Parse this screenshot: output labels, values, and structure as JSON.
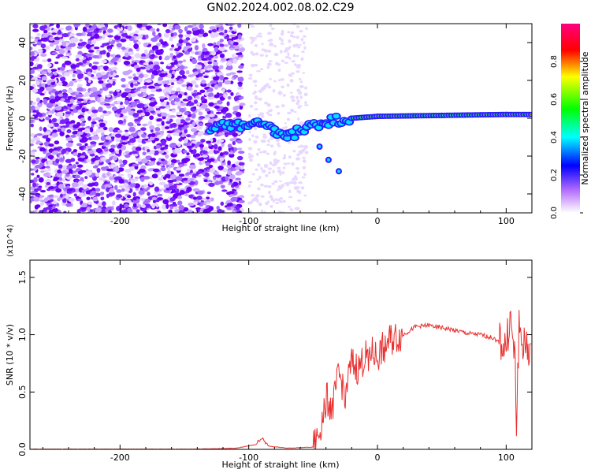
{
  "title": "GN02.2024.002.08.02.C29",
  "chart_data": [
    {
      "type": "heatmap",
      "title": "GN02.2024.002.08.02.C29",
      "xlabel": "Height of straight line (km)",
      "ylabel": "Frequency (Hz)",
      "xlim": [
        -270,
        120
      ],
      "ylim": [
        -50,
        50
      ],
      "xticks": [
        -200,
        -100,
        0,
        100
      ],
      "yticks": [
        -40,
        -20,
        0,
        20,
        40
      ],
      "colorbar": {
        "label": "Normalized spectral amplitude",
        "range": [
          0,
          1
        ],
        "ticks": [
          "0.0",
          "0.2",
          "0.4",
          "0.6",
          "0.8"
        ],
        "colors": [
          "#ffffff",
          "#7a00ff",
          "#0000ff",
          "#00ffff",
          "#00ff00",
          "#ffff00",
          "#ff0000",
          "#ff0080"
        ]
      },
      "ridge": {
        "description_points": [
          {
            "x": -130,
            "y": -5
          },
          {
            "x": -110,
            "y": -4
          },
          {
            "x": -95,
            "y": -3
          },
          {
            "x": -80,
            "y": -7
          },
          {
            "x": -70,
            "y": -10
          },
          {
            "x": -55,
            "y": -5
          },
          {
            "x": -40,
            "y": -2
          },
          {
            "x": -20,
            "y": 0
          },
          {
            "x": 0,
            "y": 1
          },
          {
            "x": 50,
            "y": 1.5
          },
          {
            "x": 100,
            "y": 2
          },
          {
            "x": 120,
            "y": 2
          }
        ],
        "branch_points": [
          {
            "x": -45,
            "y": -15
          },
          {
            "x": -38,
            "y": -22
          },
          {
            "x": -30,
            "y": -28
          }
        ]
      }
    },
    {
      "type": "line",
      "xlabel": "Height of straight line (km)",
      "ylabel": "SNR (10 * v/v)",
      "y_multiplier": "(x10^4)",
      "xlim": [
        -270,
        120
      ],
      "ylim": [
        0,
        1.65
      ],
      "xticks": [
        -200,
        -100,
        0,
        100
      ],
      "yticks": [
        0.0,
        0.5,
        1.0,
        1.5
      ],
      "color": "#e8302f",
      "series": [
        {
          "x": [
            -270,
            -200,
            -150,
            -110,
            -95,
            -90,
            -85,
            -70,
            -50,
            -45,
            -40,
            -35,
            -30,
            -25,
            -20,
            -15,
            -10,
            -5,
            0,
            5,
            10,
            20,
            30,
            40,
            50,
            60,
            70,
            80,
            90,
            95,
            100,
            103,
            105,
            107,
            108,
            110,
            112,
            115,
            120
          ],
          "y": [
            0.0,
            0.0,
            0.0,
            0.01,
            0.04,
            0.1,
            0.03,
            0.01,
            0.02,
            0.15,
            0.45,
            0.35,
            0.65,
            0.5,
            0.75,
            0.7,
            0.8,
            0.85,
            0.8,
            0.9,
            0.95,
            1.0,
            1.07,
            1.08,
            1.06,
            1.04,
            1.01,
            1.0,
            0.97,
            0.93,
            0.9,
            1.15,
            0.95,
            0.75,
            0.2,
            1.1,
            0.95,
            0.88,
            0.88
          ]
        }
      ]
    }
  ]
}
